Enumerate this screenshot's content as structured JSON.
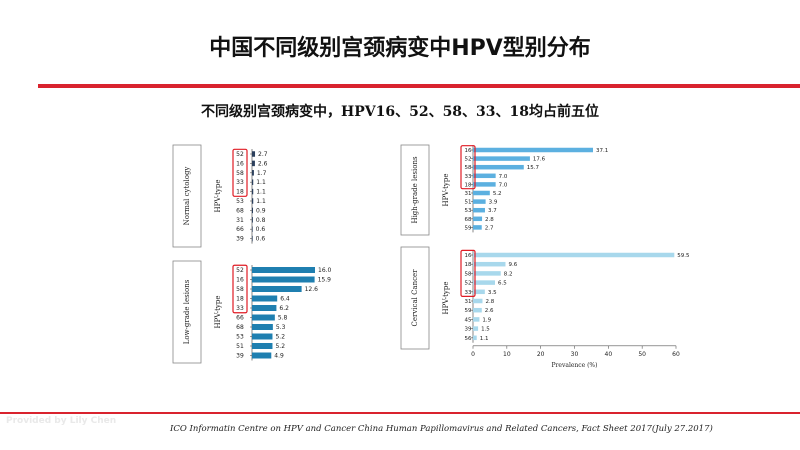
{
  "slide": {
    "title": "中国不同级别宫颈病变中HPV型别分布",
    "subtitle": "不同级别宫颈病变中，HPV16、52、58、33、18均占前五位",
    "watermark": "Provided by Lily Chen",
    "footer": "ICO Informatin Centre on HPV and Cancer China Human Papillomavirus and Related Cancers, Fact Sheet 2017(July 27.2017)"
  },
  "chart_data": [
    {
      "type": "bar",
      "orientation": "horizontal",
      "panel_label": "Normal cytology",
      "ylabel": "HPV-type",
      "categories": [
        "52",
        "16",
        "58",
        "33",
        "18",
        "53",
        "68",
        "31",
        "66",
        "39"
      ],
      "values": [
        2.7,
        2.6,
        1.7,
        1.1,
        1.1,
        1.1,
        0.9,
        0.8,
        0.6,
        0.6
      ],
      "value_labels": [
        "2.7",
        "2.6",
        "1.7",
        "1.1",
        "1.1",
        "1.1",
        "0.9",
        "0.8",
        "0.6",
        "0.6"
      ],
      "highlight_top": 5,
      "color": "#2b3f5c"
    },
    {
      "type": "bar",
      "orientation": "horizontal",
      "panel_label": "Low-grade lesions",
      "ylabel": "HPV-type",
      "categories": [
        "52",
        "16",
        "58",
        "18",
        "33",
        "66",
        "68",
        "53",
        "51",
        "39"
      ],
      "values": [
        16.0,
        15.9,
        12.6,
        6.4,
        6.2,
        5.8,
        5.3,
        5.2,
        5.2,
        4.9
      ],
      "value_labels": [
        "16.0",
        "15.9",
        "12.6",
        "6.4",
        "6.2",
        "5.8",
        "5.3",
        "5.2",
        "5.2",
        "4.9"
      ],
      "highlight_top": 5,
      "color": "#1f7fb0"
    },
    {
      "type": "bar",
      "orientation": "horizontal",
      "panel_label": "High-grade lesions",
      "ylabel": "HPV-type",
      "categories": [
        "16",
        "52",
        "58",
        "33",
        "18",
        "31",
        "51",
        "53",
        "68",
        "59"
      ],
      "values": [
        37.1,
        17.6,
        15.7,
        7.0,
        7.0,
        5.2,
        3.9,
        3.7,
        2.8,
        2.7
      ],
      "value_labels": [
        "37.1",
        "17.6",
        "15.7",
        "7.0",
        "7.0",
        "5.2",
        "3.9",
        "3.7",
        "2.8",
        "2.7"
      ],
      "highlight_top": 5,
      "color": "#5cb0e0"
    },
    {
      "type": "bar",
      "orientation": "horizontal",
      "panel_label": "Cervical Cancer",
      "ylabel": "HPV-type",
      "xlabel": "Prevalence (%)",
      "xticks": [
        0,
        10,
        20,
        30,
        40,
        50,
        60
      ],
      "xlim": [
        0,
        60
      ],
      "categories": [
        "16",
        "18",
        "58",
        "52",
        "33",
        "31",
        "59",
        "45",
        "39",
        "56"
      ],
      "values": [
        59.5,
        9.6,
        8.2,
        6.5,
        3.5,
        2.8,
        2.6,
        1.9,
        1.5,
        1.1
      ],
      "value_labels": [
        "59.5",
        "9.6",
        "8.2",
        "6.5",
        "3.5",
        "2.8",
        "2.6",
        "1.9",
        "1.5",
        "1.1"
      ],
      "highlight_top": 5,
      "color": "#a8d8ec"
    }
  ]
}
